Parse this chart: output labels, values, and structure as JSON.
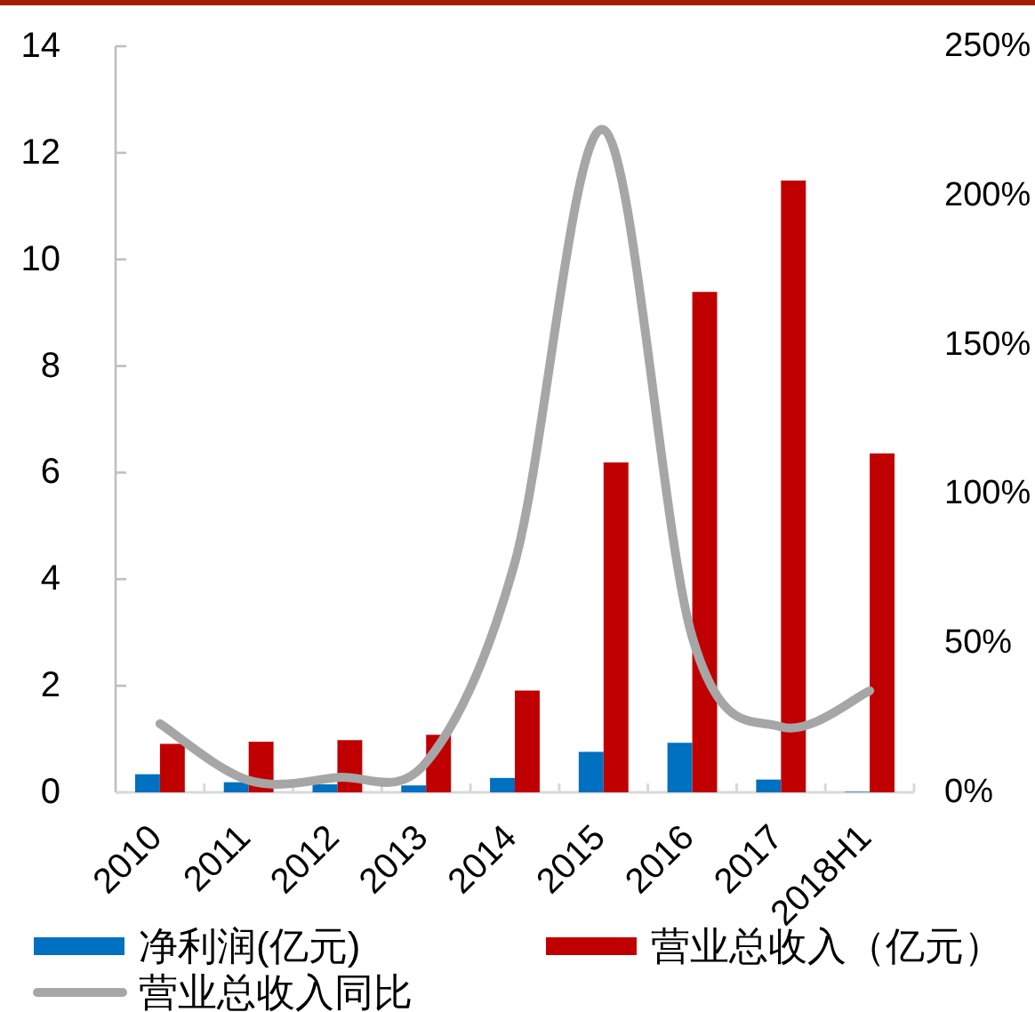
{
  "chart_data": {
    "type": "bar",
    "categories": [
      "2010",
      "2011",
      "2012",
      "2013",
      "2014",
      "2015",
      "2016",
      "2017",
      "2018H1"
    ],
    "series": [
      {
        "name": "净利润(亿元)",
        "color": "#0070c0",
        "values": [
          0.34,
          0.19,
          0.15,
          0.13,
          0.27,
          0.76,
          0.93,
          0.24,
          0.01
        ]
      },
      {
        "name": "营业总收入（亿元）",
        "color": "#c00000",
        "values": [
          0.91,
          0.95,
          0.98,
          1.08,
          1.91,
          6.19,
          9.39,
          11.48,
          6.36
        ]
      },
      {
        "name": "营业总收入同比",
        "type": "line",
        "axis": "y2",
        "color": "#a6a6a6",
        "values": [
          23,
          4,
          5,
          10,
          77,
          222,
          52,
          22,
          34
        ]
      }
    ],
    "ylim": [
      0,
      14
    ],
    "yticks": [
      0,
      2,
      4,
      6,
      8,
      10,
      12,
      14
    ],
    "y2lim": [
      0,
      250
    ],
    "y2ticks": [
      {
        "value": 0,
        "label": "0%"
      },
      {
        "value": 50,
        "label": "50%"
      },
      {
        "value": 100,
        "label": "100%"
      },
      {
        "value": 150,
        "label": "150%"
      },
      {
        "value": 200,
        "label": "200%"
      },
      {
        "value": 250,
        "label": "250%"
      }
    ],
    "legend": "bottom",
    "marker": "none"
  }
}
